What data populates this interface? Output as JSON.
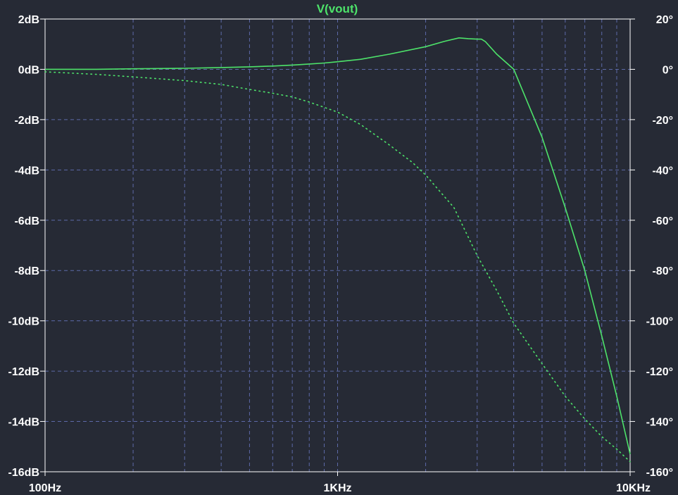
{
  "chart_data": {
    "type": "line",
    "title": "V(vout)",
    "x_scale": "log",
    "xlim": [
      100,
      10000
    ],
    "x_ticks": [
      {
        "value": 100,
        "label": "100Hz"
      },
      {
        "value": 1000,
        "label": "1KHz"
      },
      {
        "value": 10000,
        "label": "10KHz"
      }
    ],
    "y_left": {
      "unit": "dB",
      "ylim": [
        -16,
        2
      ],
      "ticks": [
        {
          "value": 2,
          "label": "2dB"
        },
        {
          "value": 0,
          "label": "0dB"
        },
        {
          "value": -2,
          "label": "-2dB"
        },
        {
          "value": -4,
          "label": "-4dB"
        },
        {
          "value": -6,
          "label": "-6dB"
        },
        {
          "value": -8,
          "label": "-8dB"
        },
        {
          "value": -10,
          "label": "-10dB"
        },
        {
          "value": -12,
          "label": "-12dB"
        },
        {
          "value": -14,
          "label": "-14dB"
        },
        {
          "value": -16,
          "label": "-16dB"
        }
      ]
    },
    "y_right": {
      "unit": "°",
      "ylim": [
        -160,
        20
      ],
      "ticks": [
        {
          "value": 20,
          "label": "20°"
        },
        {
          "value": 0,
          "label": "0°"
        },
        {
          "value": -20,
          "label": "-20°"
        },
        {
          "value": -40,
          "label": "-40°"
        },
        {
          "value": -60,
          "label": "-60°"
        },
        {
          "value": -80,
          "label": "-80°"
        },
        {
          "value": -100,
          "label": "-100°"
        },
        {
          "value": -120,
          "label": "-120°"
        },
        {
          "value": -140,
          "label": "-140°"
        },
        {
          "value": -160,
          "label": "-160°"
        }
      ]
    },
    "grid": true,
    "series": [
      {
        "kind": "magnitude",
        "axis": "left",
        "style": "solid",
        "color": "#4de36a",
        "x": [
          100,
          150,
          200,
          300,
          400,
          500,
          600,
          700,
          800,
          900,
          1000,
          1200,
          1500,
          2000,
          2300,
          2600,
          2800,
          3000,
          3100,
          3200,
          3500,
          4000,
          5000,
          6000,
          7000,
          8000,
          9000,
          10000
        ],
        "y": [
          0.0,
          0.0,
          0.02,
          0.04,
          0.07,
          0.1,
          0.13,
          0.17,
          0.21,
          0.25,
          0.3,
          0.4,
          0.6,
          0.9,
          1.1,
          1.25,
          1.22,
          1.2,
          1.2,
          1.1,
          0.6,
          0.0,
          -2.7,
          -5.5,
          -8.0,
          -10.6,
          -13.0,
          -15.3
        ]
      },
      {
        "kind": "phase",
        "axis": "right",
        "style": "dotted",
        "color": "#4de36a",
        "x": [
          100,
          150,
          200,
          300,
          400,
          500,
          600,
          700,
          800,
          1000,
          1200,
          1500,
          1800,
          2000,
          2500,
          3000,
          3500,
          4000,
          5000,
          6000,
          7000,
          8000,
          9000,
          10000
        ],
        "y": [
          -1,
          -2,
          -3,
          -4.5,
          -6,
          -8,
          -9.5,
          -11,
          -13,
          -17,
          -22,
          -30,
          -37,
          -42,
          -55,
          -74,
          -88,
          -101,
          -117,
          -130,
          -139,
          -146,
          -151,
          -156
        ]
      }
    ]
  }
}
